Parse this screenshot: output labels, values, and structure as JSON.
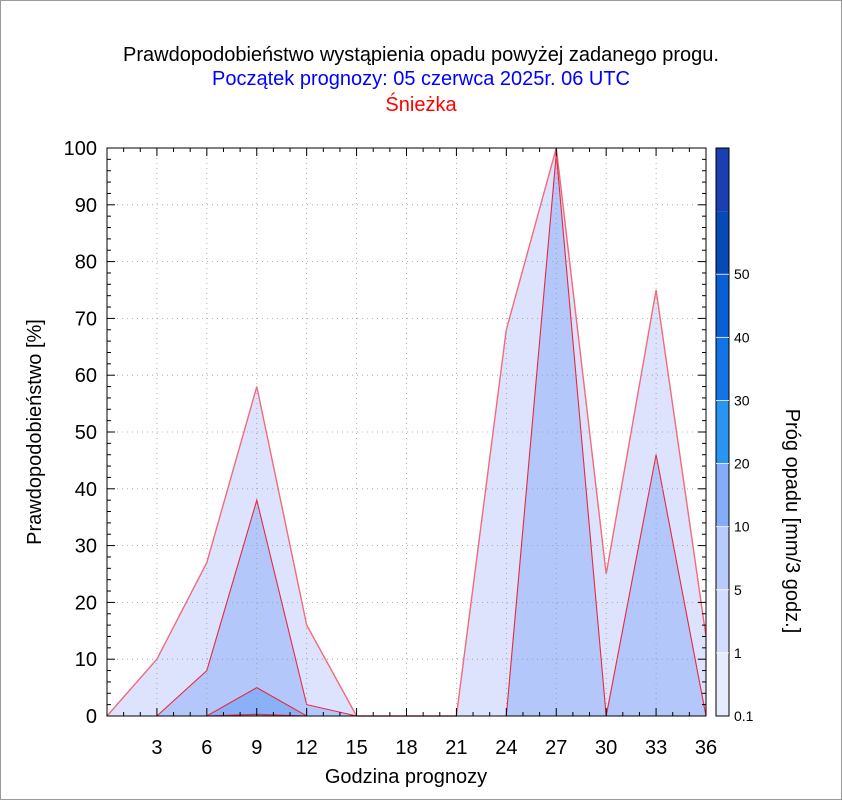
{
  "chart_data": {
    "type": "area",
    "title": "Prawdopodobieństwo wystąpienia opadu powyżej zadanego progu.",
    "subtitle": "Początek prognozy: 05 czerwca 2025r. 06 UTC",
    "location": "Śnieżka",
    "xlabel": "Godzina prognozy",
    "ylabel": "Prawdopodobieństwo [%]",
    "colorbar_label": "Próg opadu [mm/3 godz.]",
    "xlim": [
      0,
      36
    ],
    "ylim": [
      0,
      100
    ],
    "x_ticks": [
      "3",
      "6",
      "9",
      "12",
      "15",
      "18",
      "21",
      "24",
      "27",
      "30",
      "33",
      "36"
    ],
    "y_ticks": [
      "0",
      "10",
      "20",
      "30",
      "40",
      "50",
      "60",
      "70",
      "80",
      "90",
      "100"
    ],
    "grid": true,
    "x": [
      0,
      3,
      6,
      9,
      12,
      15,
      18,
      21,
      24,
      27,
      30,
      33,
      36
    ],
    "series": [
      {
        "name": "0.1",
        "color": "#dde3fd",
        "values": [
          0,
          10,
          27,
          58,
          16,
          0,
          0,
          0,
          68,
          100,
          25,
          75,
          14
        ]
      },
      {
        "name": "1",
        "color": "#b4c7fb",
        "values": [
          0,
          0,
          8,
          38,
          2,
          0,
          0,
          0,
          0,
          99,
          0,
          46,
          0
        ]
      },
      {
        "name": "5",
        "color": "#8ab0f8",
        "values": [
          0,
          0,
          0,
          5,
          0,
          0,
          0,
          0,
          0,
          0,
          0,
          0,
          0
        ]
      },
      {
        "name": "10",
        "color": "#5a9cf5",
        "values": [
          0,
          0,
          0,
          0.3,
          0,
          0,
          0,
          0,
          0,
          0,
          0,
          0,
          0
        ]
      }
    ],
    "colorbar": {
      "labels": [
        "0.1",
        "1",
        "5",
        "10",
        "20",
        "30",
        "40",
        "50"
      ],
      "colors": [
        "#e6ebfe",
        "#d3dcfc",
        "#b9cbfa",
        "#84acf7",
        "#2a94f3",
        "#1474e6",
        "#0a5fd6",
        "#0849b8",
        "#1a3fb0"
      ]
    }
  }
}
